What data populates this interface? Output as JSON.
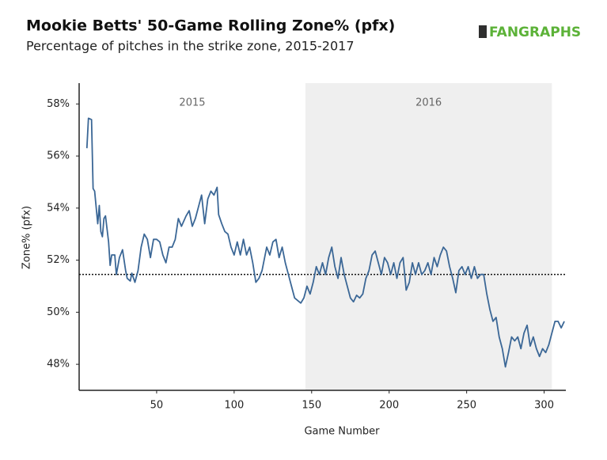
{
  "chart_data": {
    "type": "line",
    "title": "Mookie Betts' 50-Game Rolling Zone% (pfx)",
    "subtitle": "Percentage of pitches in the strike zone, 2015-2017",
    "brand": "FANGRAPHS",
    "x_label": "Game Number",
    "y_label": "Zone% (pfx)",
    "color": "#3b6796",
    "x": [
      5,
      6,
      8,
      9,
      10,
      12,
      13,
      14,
      15,
      16,
      17,
      19,
      20,
      21,
      23,
      24,
      26,
      28,
      30,
      31,
      33,
      34,
      36,
      38,
      40,
      42,
      44,
      46,
      48,
      50,
      52,
      54,
      56,
      58,
      60,
      62,
      64,
      66,
      69,
      71,
      73,
      75,
      77,
      79,
      81,
      83,
      85,
      87,
      89,
      90,
      92,
      94,
      96,
      98,
      100,
      102,
      104,
      106,
      108,
      110,
      112,
      114,
      116,
      118,
      121,
      123,
      125,
      127,
      129,
      131,
      133,
      135,
      137,
      139,
      141,
      143,
      145,
      147,
      149,
      151,
      153,
      155,
      157,
      159,
      161,
      163,
      165,
      167,
      169,
      171,
      173,
      175,
      177,
      179,
      181,
      183,
      185,
      187,
      189,
      191,
      193,
      195,
      197,
      199,
      201,
      203,
      205,
      207,
      209,
      211,
      213,
      215,
      217,
      219,
      221,
      223,
      225,
      227,
      229,
      231,
      233,
      235,
      237,
      239,
      241,
      243,
      245,
      247,
      249,
      251,
      253,
      255,
      257,
      259,
      261,
      263,
      265,
      267,
      269,
      271,
      273,
      275,
      277,
      279,
      281,
      283,
      285,
      287,
      289,
      291,
      293,
      295,
      297,
      299,
      301,
      303,
      305,
      307,
      309,
      311,
      313
    ],
    "values": [
      56.3,
      57.45,
      57.4,
      54.75,
      54.65,
      53.4,
      54.1,
      53.1,
      52.9,
      53.6,
      53.7,
      52.7,
      51.8,
      52.2,
      52.2,
      51.45,
      52.1,
      52.4,
      51.6,
      51.3,
      51.2,
      51.5,
      51.15,
      51.6,
      52.5,
      53,
      52.8,
      52.1,
      52.8,
      52.8,
      52.7,
      52.2,
      51.9,
      52.5,
      52.5,
      52.8,
      53.6,
      53.3,
      53.7,
      53.9,
      53.3,
      53.6,
      54.05,
      54.5,
      53.4,
      54.35,
      54.65,
      54.5,
      54.8,
      53.75,
      53.4,
      53.1,
      53,
      52.5,
      52.2,
      52.7,
      52.2,
      52.8,
      52.2,
      52.5,
      51.9,
      51.15,
      51.3,
      51.6,
      52.5,
      52.2,
      52.7,
      52.8,
      52.1,
      52.5,
      51.9,
      51.45,
      51,
      50.55,
      50.45,
      50.35,
      50.55,
      51,
      50.7,
      51.15,
      51.75,
      51.45,
      51.9,
      51.45,
      52.1,
      52.5,
      51.75,
      51.3,
      52.1,
      51.45,
      51,
      50.55,
      50.4,
      50.65,
      50.55,
      50.7,
      51.3,
      51.6,
      52.2,
      52.35,
      51.9,
      51.45,
      52.1,
      51.9,
      51.45,
      51.9,
      51.3,
      51.9,
      52.1,
      50.85,
      51.15,
      51.9,
      51.45,
      51.9,
      51.45,
      51.6,
      51.9,
      51.45,
      52.1,
      51.75,
      52.2,
      52.5,
      52.35,
      51.75,
      51.3,
      50.75,
      51.6,
      51.75,
      51.45,
      51.75,
      51.3,
      51.75,
      51.3,
      51.45,
      51.45,
      50.7,
      50.1,
      49.65,
      49.8,
      49.05,
      48.6,
      47.9,
      48.45,
      49.05,
      48.9,
      49.05,
      48.6,
      49.2,
      49.5,
      48.7,
      49.05,
      48.6,
      48.3,
      48.6,
      48.45,
      48.75,
      49.2,
      49.65,
      49.65,
      49.4,
      49.65
    ],
    "xlim": [
      0,
      314
    ],
    "ylim": [
      47,
      58.8
    ],
    "xticks": [
      50,
      100,
      150,
      200,
      250,
      300
    ],
    "yticks": [
      {
        "value": 48,
        "label": "48%"
      },
      {
        "value": 50,
        "label": "50%"
      },
      {
        "value": 52,
        "label": "52%"
      },
      {
        "value": 54,
        "label": "54%"
      },
      {
        "value": 56,
        "label": "56%"
      },
      {
        "value": 58,
        "label": "58%"
      }
    ],
    "reference_line": 51.45,
    "regions": [
      {
        "label": "2015",
        "start": 0,
        "end": 146
      },
      {
        "label": "2016",
        "start": 146,
        "end": 305,
        "shaded": true
      }
    ],
    "grid": false
  }
}
